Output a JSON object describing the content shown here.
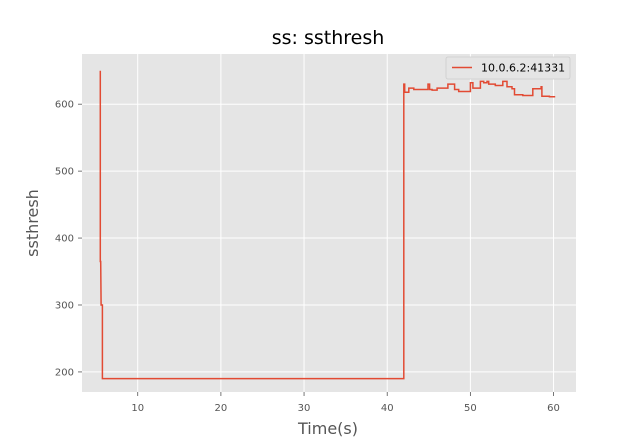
{
  "chart_data": {
    "type": "line",
    "title": "ss: ssthresh",
    "xlabel": "Time(s)",
    "ylabel": "ssthresh",
    "xlim": [
      3.3,
      62.7
    ],
    "ylim": [
      170,
      675
    ],
    "xticks": [
      10,
      20,
      30,
      40,
      50,
      60
    ],
    "yticks": [
      200,
      300,
      400,
      500,
      600
    ],
    "grid": true,
    "legend_position": "top-right",
    "series": [
      {
        "name": "10.0.6.2:41331",
        "color": "#E24A33",
        "x": [
          5.5,
          5.5,
          5.55,
          5.6,
          5.75,
          5.75,
          42.0,
          42.0,
          42.1,
          42.1,
          42.6,
          42.6,
          43.2,
          43.2,
          44.9,
          44.9,
          45.1,
          45.1,
          45.4,
          45.4,
          46.0,
          46.0,
          47.3,
          47.3,
          48.1,
          48.1,
          48.6,
          48.6,
          50.0,
          50.0,
          50.3,
          50.3,
          51.2,
          51.2,
          51.6,
          51.6,
          52.0,
          52.0,
          52.2,
          52.2,
          53.0,
          53.0,
          53.9,
          53.9,
          54.4,
          54.4,
          55.0,
          55.0,
          55.3,
          55.3,
          56.3,
          56.3,
          57.5,
          57.5,
          58.5,
          58.5,
          58.6,
          58.6,
          59.5,
          59.5,
          60.2
        ],
        "y": [
          650,
          365,
          365,
          300,
          300,
          190,
          190,
          630,
          630,
          618,
          618,
          624,
          624,
          622,
          622,
          630,
          630,
          622,
          622,
          621,
          621,
          624,
          624,
          630,
          630,
          622,
          622,
          619,
          619,
          632,
          632,
          624,
          624,
          634,
          634,
          632,
          632,
          634,
          634,
          630,
          630,
          628,
          628,
          634,
          634,
          626,
          626,
          623,
          623,
          614,
          614,
          613,
          613,
          623,
          623,
          626,
          626,
          612,
          612,
          611,
          611
        ]
      }
    ]
  }
}
